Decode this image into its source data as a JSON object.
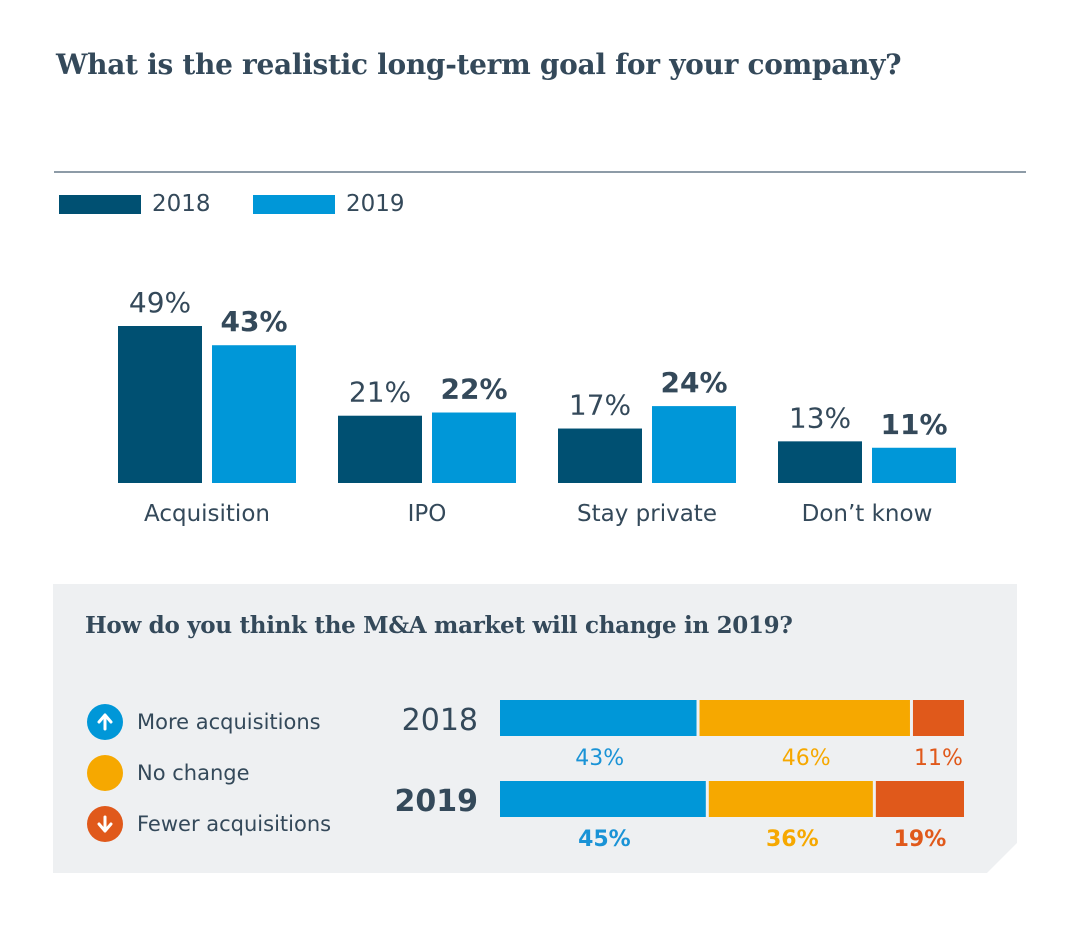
{
  "header": {
    "title": "What is the realistic long-term goal for your company?"
  },
  "colors": {
    "dark": "#005072",
    "light": "#0097d8",
    "text": "#34495a",
    "blue_label": "#1a93d6",
    "orange": "#f6a800",
    "red": "#e0591b"
  },
  "chart_data": [
    {
      "type": "bar",
      "title": "What is the realistic long-term goal for your company?",
      "categories": [
        "Acquisition",
        "IPO",
        "Stay private",
        "Don’t know"
      ],
      "series": [
        {
          "name": "2018",
          "values": [
            49,
            21,
            17,
            13
          ],
          "labels": [
            "49%",
            "21%",
            "17%",
            "13%"
          ]
        },
        {
          "name": "2019",
          "values": [
            43,
            22,
            24,
            11
          ],
          "labels": [
            "43%",
            "22%",
            "24%",
            "11%"
          ]
        }
      ],
      "ylim": [
        0,
        50
      ],
      "legend": "top-left",
      "unit": "%"
    },
    {
      "type": "bar",
      "stacked": true,
      "orientation": "horizontal",
      "title": "How do you think the M&A market will change in 2019?",
      "categories": [
        "2018",
        "2019"
      ],
      "series": [
        {
          "name": "More acquisitions",
          "values": [
            43,
            45
          ],
          "labels": [
            "43%",
            "45%"
          ]
        },
        {
          "name": "No change",
          "values": [
            46,
            36
          ],
          "labels": [
            "46%",
            "36%"
          ]
        },
        {
          "name": "Fewer acquisitions",
          "values": [
            11,
            19
          ],
          "labels": [
            "11%",
            "19%"
          ]
        }
      ],
      "xlim": [
        0,
        100
      ],
      "legend": "left",
      "unit": "%"
    }
  ]
}
